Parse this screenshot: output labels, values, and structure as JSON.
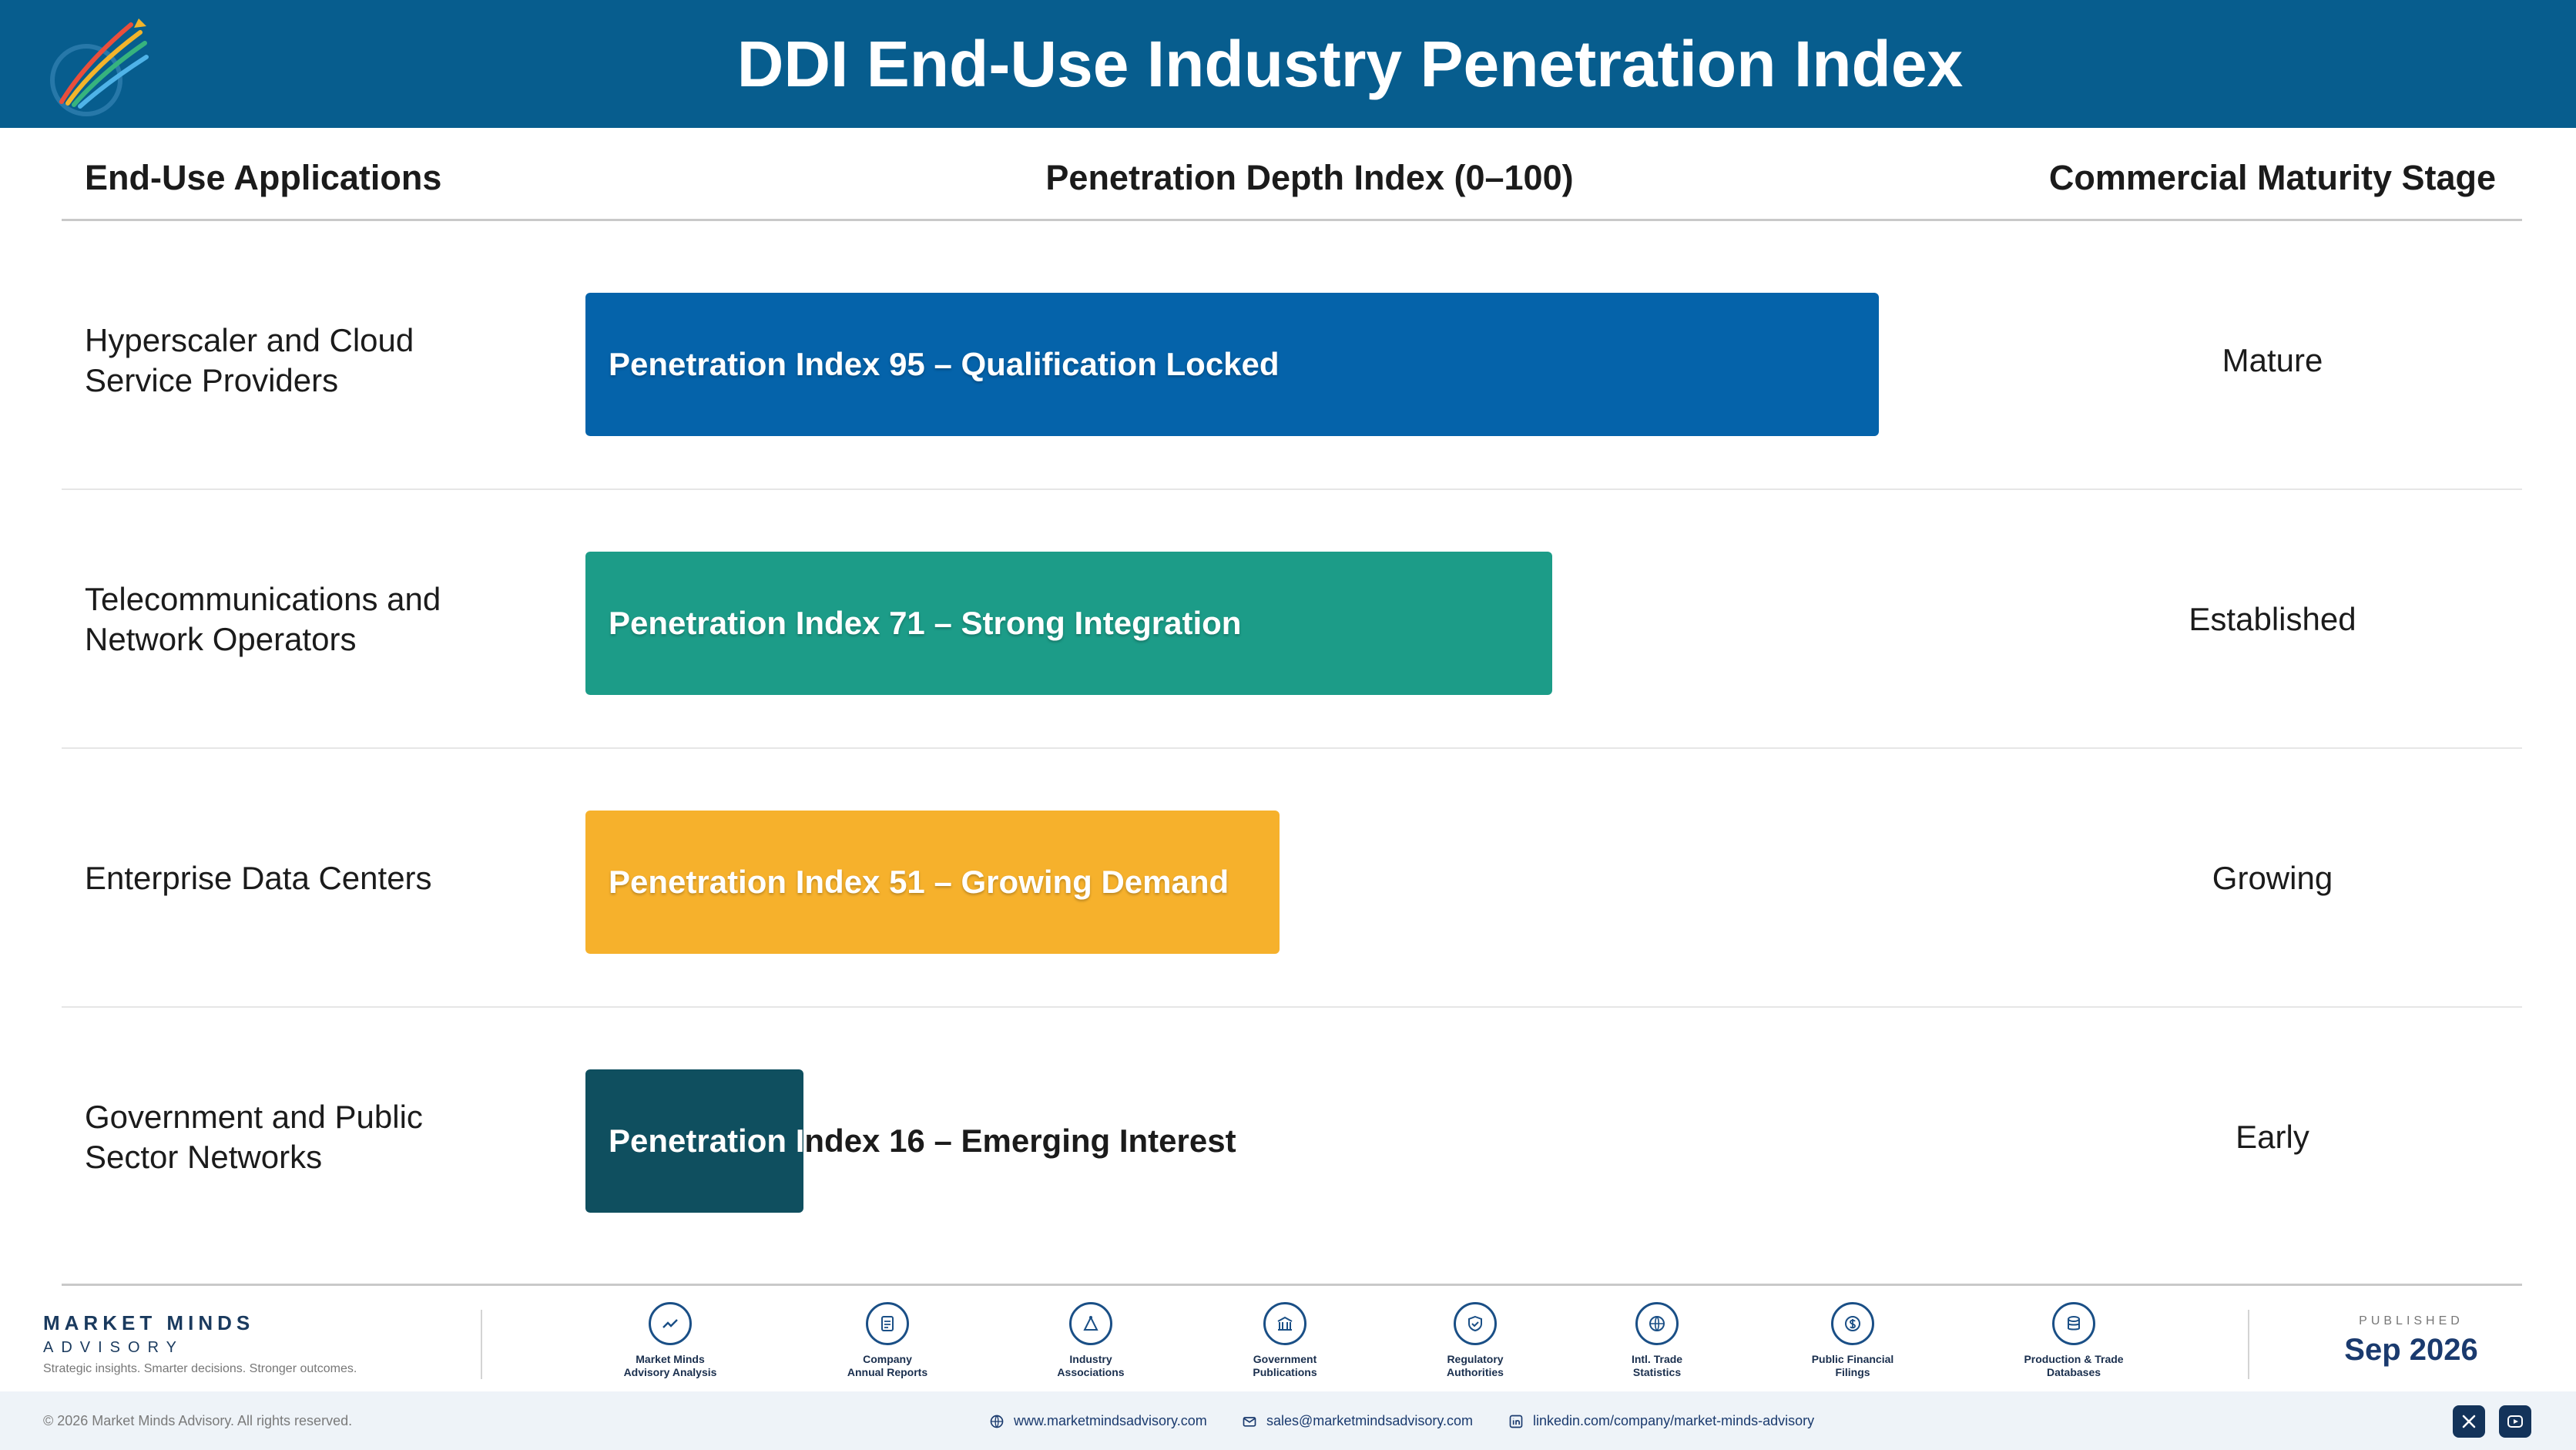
{
  "header": {
    "title": "DDI End-Use Industry Penetration Index"
  },
  "columns": {
    "applications": "End-Use Applications",
    "index": "Penetration Depth Index (0–100)",
    "stage": "Commercial Maturity Stage"
  },
  "chart_data": {
    "type": "bar",
    "orientation": "horizontal",
    "xlim": [
      0,
      100
    ],
    "categories": [
      "Hyperscaler and Cloud Service Providers",
      "Telecommunications and Network Operators",
      "Enterprise Data Centers",
      "Government and Public Sector Networks"
    ],
    "values": [
      95,
      71,
      51,
      16
    ],
    "bar_labels": [
      "Penetration Index 95 – Qualification Locked",
      "Penetration Index 71 – Strong Integration",
      "Penetration Index 51 – Growing Demand",
      "Penetration Index 16 – Emerging Interest"
    ],
    "stages": [
      "Mature",
      "Established",
      "Growing",
      "Early"
    ],
    "colors": [
      "#0563aa",
      "#1c9c88",
      "#f6b12c",
      "#0f4f5f"
    ],
    "title": "DDI End-Use Industry Penetration Index"
  },
  "footer": {
    "brand_name": "MARKET MINDS",
    "brand_sub": "ADVISORY",
    "brand_tagline": "Strategic insights. Smarter decisions. Stronger outcomes.",
    "sources": [
      {
        "line1": "Market Minds",
        "line2": "Advisory Analysis",
        "icon": "trend-chart-icon"
      },
      {
        "line1": "Company",
        "line2": "Annual Reports",
        "icon": "document-icon"
      },
      {
        "line1": "Industry",
        "line2": "Associations",
        "icon": "network-icon"
      },
      {
        "line1": "Government",
        "line2": "Publications",
        "icon": "building-icon"
      },
      {
        "line1": "Regulatory",
        "line2": "Authorities",
        "icon": "shield-icon"
      },
      {
        "line1": "Intl. Trade",
        "line2": "Statistics",
        "icon": "globe-icon"
      },
      {
        "line1": "Public Financial",
        "line2": "Filings",
        "icon": "coin-icon"
      },
      {
        "line1": "Production & Trade",
        "line2": "Databases",
        "icon": "database-icon"
      }
    ],
    "published_label": "PUBLISHED",
    "published_date": "Sep 2026",
    "copyright": "© 2026 Market Minds Advisory. All rights reserved.",
    "website": "www.marketmindsadvisory.com",
    "email": "sales@marketmindsadvisory.com",
    "linkedin": "linkedin.com/company/market-minds-advisory"
  }
}
